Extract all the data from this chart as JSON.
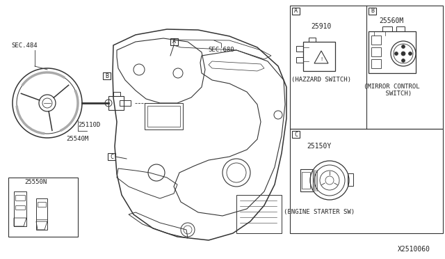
{
  "bg_color": "#ffffff",
  "line_color": "#333333",
  "text_color": "#222222",
  "part_number_bottom_right": "X2510060",
  "labels": {
    "sec484": "SEC.484",
    "sec680": "SEC.680",
    "part_25110D": "25110D",
    "part_25540M": "25540M",
    "part_25550N": "25550N",
    "part_A_num": "25910",
    "part_A_label": "(HAZZARD SWITCH)",
    "part_B_num": "25560M",
    "part_B_label": "(MIRROR CONTROL\n    SWITCH)",
    "part_C_num": "25150Y",
    "part_C_label": "(ENGINE STARTER SW)",
    "callout_A": "A",
    "callout_B": "B",
    "callout_C": "C"
  },
  "fig_width": 6.4,
  "fig_height": 3.72,
  "dpi": 100
}
